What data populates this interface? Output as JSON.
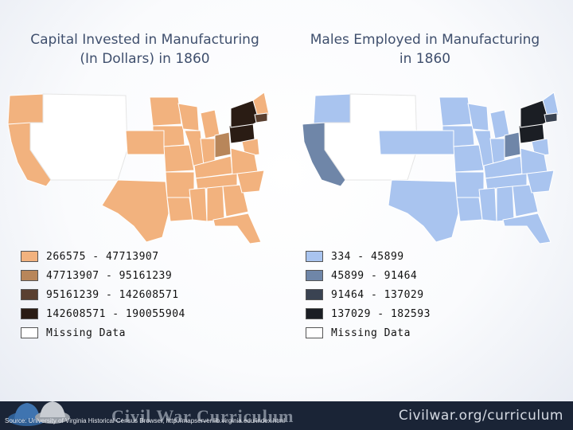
{
  "maps": [
    {
      "title_line1": "Capital Invested in Manufacturing",
      "title_line2": "(In Dollars) in 1860",
      "legend": [
        {
          "label": "266575 - 47713907",
          "color": "#f2b27e"
        },
        {
          "label": "47713907 - 95161239",
          "color": "#b8865a"
        },
        {
          "label": "95161239 - 142608571",
          "color": "#5a4030"
        },
        {
          "label": "142608571 - 190055904",
          "color": "#2a1c14"
        },
        {
          "label": "Missing Data",
          "color": "#ffffff"
        }
      ]
    },
    {
      "title_line1": "Males Employed in Manufacturing",
      "title_line2": "in 1860",
      "legend": [
        {
          "label": "334 - 45899",
          "color": "#a9c4ef"
        },
        {
          "label": "45899 - 91464",
          "color": "#6f86a8"
        },
        {
          "label": "91464 - 137029",
          "color": "#3a4352"
        },
        {
          "label": "137029 - 182593",
          "color": "#1b1e24"
        },
        {
          "label": "Missing Data",
          "color": "#ffffff"
        }
      ]
    }
  ],
  "footer": {
    "brand": "Civil War Curriculum",
    "site": "Civilwar.org/curriculum",
    "source": "Source: University of Virginia Historical Census Browser, http://mapserver.lib.virginia.edu/index.html"
  }
}
